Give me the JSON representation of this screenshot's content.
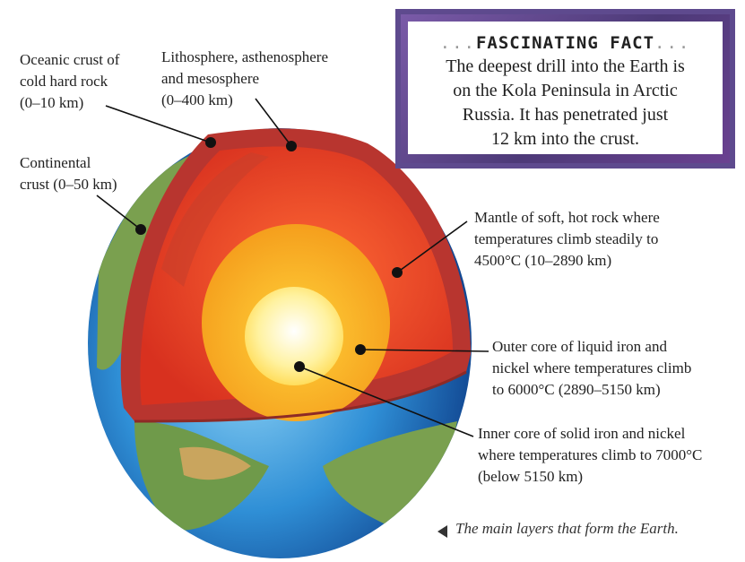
{
  "labels": {
    "oceanic": [
      "Oceanic crust of",
      "cold hard rock",
      "(0–10 km)"
    ],
    "lithosphere": [
      "Lithosphere, asthenosphere",
      "and mesosphere",
      "(0–400 km)"
    ],
    "continental": [
      "Continental",
      "crust (0–50 km)"
    ],
    "mantle": [
      "Mantle of soft, hot rock where",
      "temperatures climb steadily to",
      "4500°C (10–2890 km)"
    ],
    "outer_core": [
      "Outer core of liquid iron and",
      "nickel where temperatures climb",
      "to 6000°C (2890–5150 km)"
    ],
    "inner_core": [
      "Inner core of solid iron and nickel",
      "where temperatures climb to 7000°C",
      "(below 5150 km)"
    ]
  },
  "fact": {
    "title": "FASCINATING FACT",
    "lines": [
      "The deepest drill into the Earth is",
      "on the Kola Peninsula in Arctic",
      "Russia. It has penetrated just",
      "12 km into the crust."
    ]
  },
  "caption": "The main layers that form the Earth.",
  "colors": {
    "ocean": "#2f8fd6",
    "land": "#6f9a4a",
    "crust": "#c0413a",
    "mantle": "#e8402a",
    "outer_core": "#f6a019",
    "inner_core": "#fff6a8",
    "frame": "#5e4a8e"
  }
}
